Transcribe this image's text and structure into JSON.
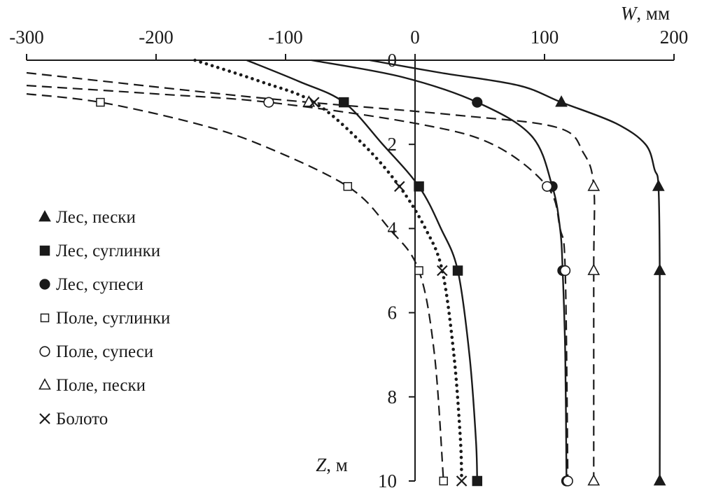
{
  "chart_data": {
    "type": "line",
    "x_axis": {
      "label_symbol": "W",
      "label_unit": ", мм",
      "range": [
        -300,
        200
      ],
      "ticks": [
        -300,
        -200,
        -100,
        0,
        100,
        200
      ],
      "tick_labels": [
        "-300",
        "-200",
        "-100",
        "0",
        "100",
        "200"
      ],
      "position": "top"
    },
    "y_axis": {
      "label_symbol": "Z",
      "label_unit": ", м",
      "range": [
        0,
        10
      ],
      "inverted": true,
      "ticks": [
        0,
        2,
        4,
        6,
        8,
        10
      ],
      "tick_labels": [
        "0",
        "2",
        "4",
        "6",
        "8",
        "10"
      ]
    },
    "grid": false,
    "legend_position": "left",
    "series": [
      {
        "name": "Лес, пески",
        "marker": "triangle-filled",
        "line_style": "solid",
        "markers": [
          [
            113,
            1
          ],
          [
            188,
            3
          ],
          [
            189,
            5
          ],
          [
            189,
            10
          ]
        ],
        "curve": [
          [
            -35,
            0
          ],
          [
            20,
            0.3
          ],
          [
            80,
            0.6
          ],
          [
            113,
            1
          ],
          [
            155,
            1.5
          ],
          [
            178,
            2
          ],
          [
            185,
            2.6
          ],
          [
            188,
            3
          ],
          [
            189,
            5
          ],
          [
            189,
            10
          ]
        ]
      },
      {
        "name": "Лес, суглинки",
        "marker": "square-filled",
        "line_style": "solid",
        "markers": [
          [
            -55,
            1
          ],
          [
            3,
            3
          ],
          [
            33,
            5
          ],
          [
            48,
            10
          ]
        ],
        "curve": [
          [
            -130,
            0
          ],
          [
            -90,
            0.5
          ],
          [
            -55,
            1
          ],
          [
            -25,
            2
          ],
          [
            3,
            3
          ],
          [
            20,
            4
          ],
          [
            33,
            5
          ],
          [
            42,
            7
          ],
          [
            47,
            9
          ],
          [
            48,
            10
          ]
        ]
      },
      {
        "name": "Лес, супеси",
        "marker": "circle-filled",
        "line_style": "solid",
        "markers": [
          [
            48,
            1
          ],
          [
            106,
            3
          ],
          [
            114,
            5
          ],
          [
            117,
            10
          ]
        ],
        "curve": [
          [
            -80,
            0
          ],
          [
            -10,
            0.4
          ],
          [
            48,
            1
          ],
          [
            90,
            1.8
          ],
          [
            106,
            3
          ],
          [
            112,
            4
          ],
          [
            114,
            5
          ],
          [
            116,
            7
          ],
          [
            117,
            10
          ]
        ]
      },
      {
        "name": "Поле, суглинки",
        "marker": "square-open",
        "line_style": "dashed",
        "markers": [
          [
            -243,
            1
          ],
          [
            -52,
            3
          ],
          [
            3,
            5
          ],
          [
            22,
            10
          ]
        ],
        "curve": [
          [
            -300,
            0.8
          ],
          [
            -243,
            1
          ],
          [
            -170,
            1.5
          ],
          [
            -120,
            2
          ],
          [
            -52,
            3
          ],
          [
            -20,
            4
          ],
          [
            3,
            5
          ],
          [
            15,
            7
          ],
          [
            22,
            10
          ]
        ]
      },
      {
        "name": "Поле, супеси",
        "marker": "circle-open",
        "line_style": "dashed",
        "markers": [
          [
            -113,
            1
          ],
          [
            102,
            3
          ],
          [
            116,
            5
          ],
          [
            118,
            10
          ]
        ],
        "curve": [
          [
            -300,
            0.6
          ],
          [
            -200,
            0.8
          ],
          [
            -113,
            1
          ],
          [
            0,
            1.5
          ],
          [
            60,
            2
          ],
          [
            102,
            3
          ],
          [
            112,
            4
          ],
          [
            116,
            5
          ],
          [
            118,
            10
          ]
        ]
      },
      {
        "name": "Поле, пески",
        "marker": "triangle-open",
        "line_style": "dashed",
        "markers": [
          [
            -82,
            1
          ],
          [
            138,
            3
          ],
          [
            138,
            5
          ],
          [
            138,
            10
          ]
        ],
        "curve": [
          [
            -300,
            0.3
          ],
          [
            -150,
            0.8
          ],
          [
            -82,
            1
          ],
          [
            30,
            1.3
          ],
          [
            110,
            1.6
          ],
          [
            130,
            2.2
          ],
          [
            138,
            3
          ],
          [
            138,
            5
          ],
          [
            138,
            10
          ]
        ]
      },
      {
        "name": "Болото",
        "marker": "cross",
        "line_style": "dotted",
        "markers": [
          [
            -78,
            1
          ],
          [
            -12,
            3
          ],
          [
            21,
            5
          ],
          [
            36,
            10
          ]
        ],
        "curve": [
          [
            -170,
            0
          ],
          [
            -120,
            0.5
          ],
          [
            -78,
            1
          ],
          [
            -40,
            2
          ],
          [
            -12,
            3
          ],
          [
            8,
            4
          ],
          [
            21,
            5
          ],
          [
            30,
            7
          ],
          [
            35,
            9
          ],
          [
            36,
            10
          ]
        ]
      }
    ]
  }
}
